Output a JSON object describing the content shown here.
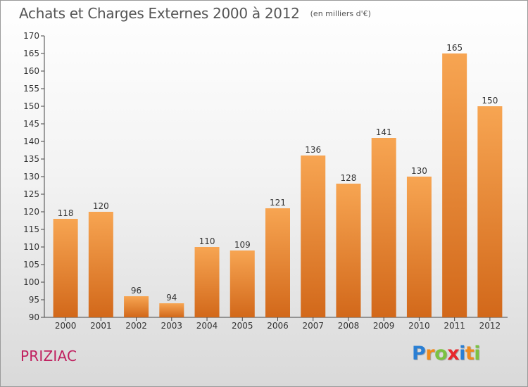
{
  "header": {
    "title": "Achats et Charges Externes 2000 à 2012",
    "unit": "(en milliers d'€)"
  },
  "footer": {
    "commune": "PRIZIAC",
    "brand": {
      "text": "Proxiti",
      "letters": [
        {
          "char": "P",
          "color": "#2a7fd4"
        },
        {
          "char": "r",
          "color": "#f08a1c"
        },
        {
          "char": "o",
          "color": "#7bc242"
        },
        {
          "char": "x",
          "color": "#e8262a"
        },
        {
          "char": "i",
          "color": "#2a7fd4"
        },
        {
          "char": "t",
          "color": "#f08a1c"
        },
        {
          "char": "i",
          "color": "#7bc242"
        }
      ]
    }
  },
  "chart_data": {
    "type": "bar",
    "title": "Achats et Charges Externes 2000 à 2012",
    "subtitle": "(en milliers d'€)",
    "categories": [
      "2000",
      "2001",
      "2002",
      "2003",
      "2004",
      "2005",
      "2006",
      "2007",
      "2008",
      "2009",
      "2010",
      "2011",
      "2012"
    ],
    "values": [
      118,
      120,
      96,
      94,
      110,
      109,
      121,
      136,
      128,
      141,
      130,
      165,
      150
    ],
    "ylim": [
      90,
      170
    ],
    "yticks": [
      90,
      95,
      100,
      105,
      110,
      115,
      120,
      125,
      130,
      135,
      140,
      145,
      150,
      155,
      160,
      165,
      170
    ],
    "grid": false,
    "data_labels": true,
    "colors": {
      "bar_top": "#f7a552",
      "bar_bottom": "#d2681a",
      "axis": "#444444",
      "text": "#333333"
    }
  }
}
